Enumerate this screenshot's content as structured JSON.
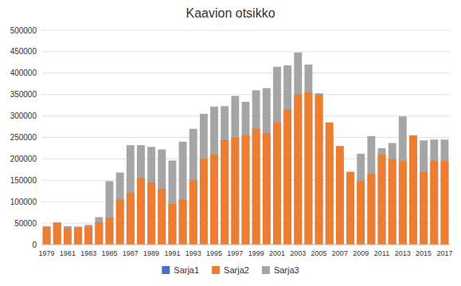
{
  "chart_data": {
    "type": "bar",
    "title": "Kaavion otsikko",
    "categories": [
      "1979",
      null,
      "1981",
      null,
      "1983",
      null,
      "1985",
      null,
      "1987",
      null,
      "1989",
      null,
      "1991",
      null,
      "1993",
      null,
      "1995",
      null,
      "1997",
      null,
      "1999",
      null,
      "2001",
      null,
      "2003",
      null,
      "2005",
      null,
      "2007",
      null,
      "2009",
      null,
      "2011",
      null,
      "2013",
      null,
      "2015",
      null,
      "2017"
    ],
    "series": [
      {
        "name": "Sarja1",
        "color": "#4472c4",
        "values": [
          0,
          0,
          0,
          0,
          0,
          0,
          0,
          0,
          0,
          0,
          0,
          0,
          0,
          0,
          0,
          0,
          0,
          0,
          0,
          0,
          0,
          0,
          0,
          0,
          0,
          0,
          0,
          0,
          0,
          0,
          0,
          0,
          0,
          0,
          0,
          0,
          0,
          0,
          0
        ]
      },
      {
        "name": "Sarja2",
        "color": "#ed7d31",
        "values": [
          40000,
          50000,
          38000,
          40000,
          42000,
          52000,
          63000,
          105000,
          120000,
          155000,
          145000,
          130000,
          95000,
          105000,
          150000,
          200000,
          210000,
          245000,
          250000,
          255000,
          270000,
          260000,
          285000,
          315000,
          350000,
          355000,
          350000,
          285000,
          230000,
          170000,
          148000,
          165000,
          210000,
          200000,
          195000,
          255000,
          170000,
          195000,
          195000
        ]
      },
      {
        "name": "Sarja3",
        "color": "#a5a5a5",
        "values": [
          43000,
          52000,
          43000,
          42000,
          46000,
          64000,
          148000,
          168000,
          232000,
          232000,
          228000,
          222000,
          196000,
          240000,
          270000,
          305000,
          322000,
          323000,
          347000,
          333000,
          360000,
          365000,
          415000,
          418000,
          448000,
          420000,
          353000,
          258000,
          215000,
          150000,
          212000,
          253000,
          225000,
          237000,
          299000,
          212000,
          243000,
          245000,
          245000
        ]
      }
    ],
    "ylim": [
      0,
      500000
    ],
    "yticks": [
      0,
      50000,
      100000,
      150000,
      200000,
      250000,
      300000,
      350000,
      400000,
      450000,
      500000
    ],
    "grid": true,
    "legend": "bottom"
  }
}
